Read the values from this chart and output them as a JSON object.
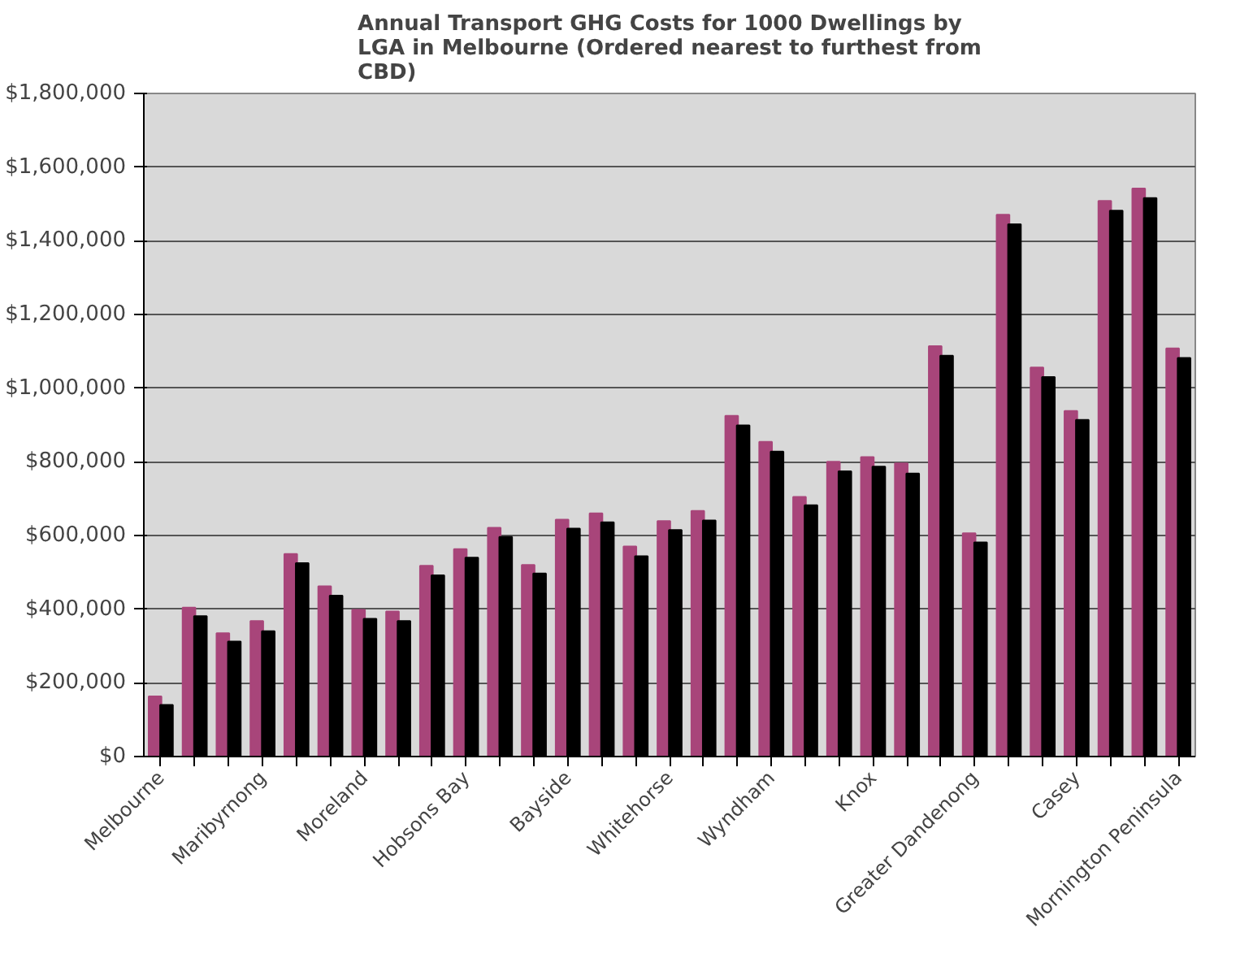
{
  "chart_data": {
    "type": "bar",
    "title": "Annual Transport GHG Costs for 1000 Dwellings by LGA in Melbourne (Ordered nearest to furthest from CBD)",
    "categories": [
      "Melbourne",
      null,
      null,
      "Maribyrnong",
      null,
      null,
      "Moreland",
      null,
      null,
      "Hobsons Bay",
      null,
      null,
      "Bayside",
      null,
      null,
      "Whitehorse",
      null,
      null,
      "Wyndham",
      null,
      null,
      "Knox",
      null,
      null,
      "Greater Dandenong",
      null,
      null,
      "Casey",
      null,
      null,
      "Mornington Peninsula"
    ],
    "series": [
      {
        "color": "#a8457a",
        "values": [
          163000,
          404000,
          335000,
          368000,
          550000,
          462000,
          398000,
          394000,
          518000,
          563000,
          621000,
          520000,
          643000,
          660000,
          570000,
          639000,
          667000,
          925000,
          854000,
          705000,
          800000,
          813000,
          796000,
          1114000,
          606000,
          1471000,
          1056000,
          938000,
          1508000,
          1542000,
          1108000
        ]
      },
      {
        "color": "#000000",
        "values": [
          140000,
          381000,
          312000,
          340000,
          525000,
          437000,
          374000,
          368000,
          492000,
          540000,
          596000,
          497000,
          619000,
          636000,
          544000,
          615000,
          641000,
          899000,
          828000,
          682000,
          774000,
          787000,
          768000,
          1088000,
          581000,
          1445000,
          1030000,
          914000,
          1482000,
          1516000,
          1082000
        ]
      }
    ],
    "ylim": [
      0,
      1800000
    ],
    "yticks": [
      {
        "value": 0,
        "label": "$0"
      },
      {
        "value": 200000,
        "label": "$200,000"
      },
      {
        "value": 400000,
        "label": "$400,000"
      },
      {
        "value": 600000,
        "label": "$600,000"
      },
      {
        "value": 800000,
        "label": "$800,000"
      },
      {
        "value": 1000000,
        "label": "$1,000,000"
      },
      {
        "value": 1200000,
        "label": "$1,200,000"
      },
      {
        "value": 1400000,
        "label": "$1,400,000"
      },
      {
        "value": 1600000,
        "label": "$1,600,000"
      },
      {
        "value": 1800000,
        "label": "$1,800,000"
      }
    ],
    "grid": "y"
  }
}
